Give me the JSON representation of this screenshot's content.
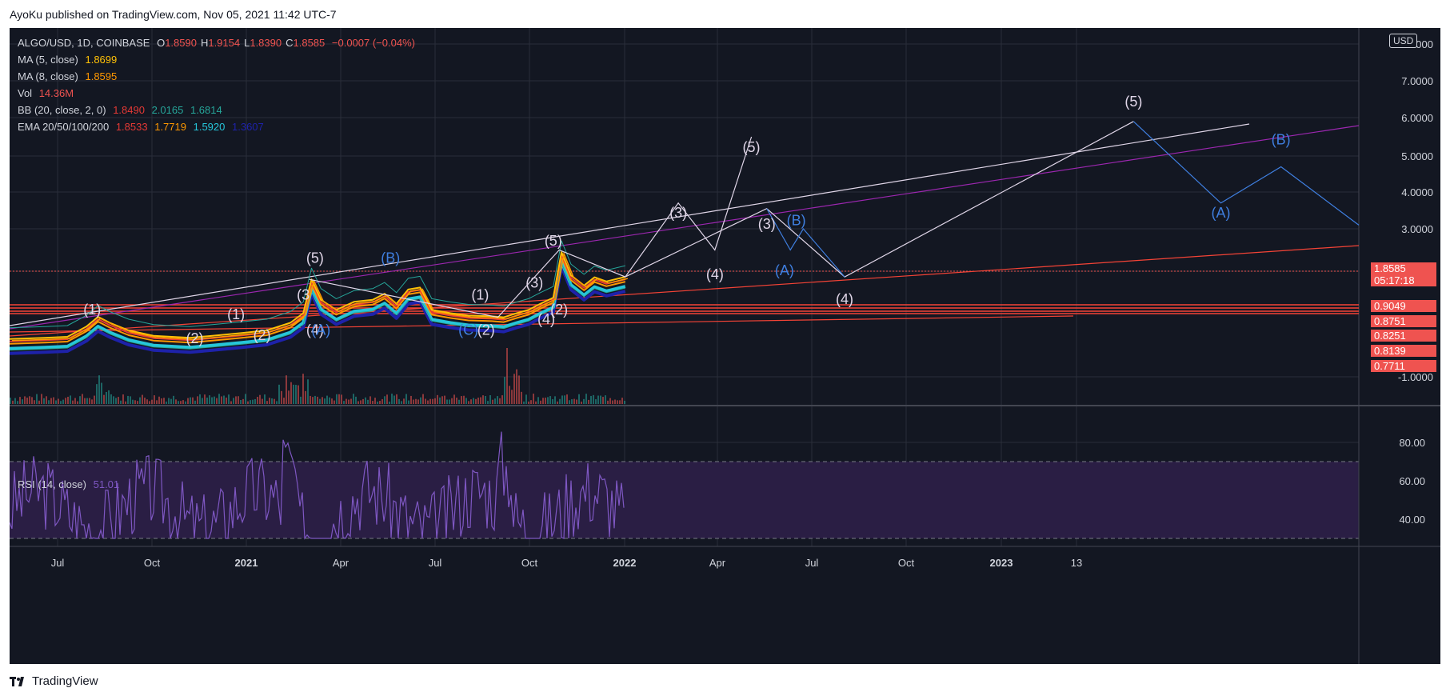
{
  "publish_line": "AyoKu published on TradingView.com, Nov 05, 2021 11:42 UTC-7",
  "brand": "TradingView",
  "currency_badge": "USD",
  "legend": {
    "symbol": "ALGO/USD, 1D, COINBASE",
    "ohlc": [
      {
        "k": "O",
        "v": "1.8590"
      },
      {
        "k": "H",
        "v": "1.9154"
      },
      {
        "k": "L",
        "v": "1.8390"
      },
      {
        "k": "C",
        "v": "1.8585"
      }
    ],
    "change": "−0.0007 (−0.04%)",
    "ma5_label": "MA (5, close)",
    "ma5_value": "1.8699",
    "ma8_label": "MA (8, close)",
    "ma8_value": "1.8595",
    "vol_label": "Vol",
    "vol_value": "14.36M",
    "bb_label": "BB (20, close, 2, 0)",
    "bb_values": [
      "1.8490",
      "2.0165",
      "1.6814"
    ],
    "ema_label": "EMA 20/50/100/200",
    "ema_values": [
      "1.8533",
      "1.7719",
      "1.5920",
      "1.3607"
    ],
    "rsi_label": "RSI (14, close)",
    "rsi_value": "51.01"
  },
  "colors": {
    "background": "#131722",
    "grid": "#2a2e39",
    "text": "#d1d4dc",
    "down": "#ef5350",
    "up": "#26a69a",
    "price_line": "#f7a21b",
    "ma5": "#ffc107",
    "ma8": "#ff9800",
    "ema20": "#e53935",
    "ema50": "#ff9800",
    "ema100": "#26c6da",
    "ema200": "#1e22aa",
    "bb": "#26a69a",
    "wave_white": "#e0d6e8",
    "wave_blue": "#3f7fe0",
    "trend_purple": "#9c27b0",
    "trend_red": "#f44336",
    "rsi_line": "#7e57c2",
    "rsi_band": "#2a1e44",
    "price_tag": "#ef5350"
  },
  "chart_data": {
    "type": "line",
    "symbol": "ALGO/USD",
    "timeframe": "1D",
    "exchange": "COINBASE",
    "x_ticks": [
      "Jul",
      "Oct",
      "2021",
      "Apr",
      "Jul",
      "Oct",
      "2022",
      "Apr",
      "Jul",
      "Oct",
      "2023",
      "13"
    ],
    "y_ticks": [
      "8.0000",
      "7.0000",
      "6.0000",
      "5.0000",
      "4.0000",
      "3.0000",
      "2.0000",
      "-1.0000"
    ],
    "rsi_ticks": [
      "80.00",
      "60.00",
      "40.00"
    ],
    "price_tags": [
      {
        "value": "1.8585",
        "countdown": "05:17:18"
      },
      {
        "value": "0.9049"
      },
      {
        "value": "0.8751"
      },
      {
        "value": "0.8251"
      },
      {
        "value": "0.8139"
      },
      {
        "value": "0.7711"
      }
    ],
    "price_series": [
      [
        "2020-06-01",
        0.22
      ],
      [
        "2020-07-01",
        0.24
      ],
      [
        "2020-07-20",
        0.26
      ],
      [
        "2020-08-05",
        0.45
      ],
      [
        "2020-08-15",
        0.8
      ],
      [
        "2020-08-25",
        0.55
      ],
      [
        "2020-09-10",
        0.38
      ],
      [
        "2020-10-01",
        0.28
      ],
      [
        "2020-11-01",
        0.24
      ],
      [
        "2020-11-20",
        0.28
      ],
      [
        "2020-12-15",
        0.33
      ],
      [
        "2021-01-05",
        0.38
      ],
      [
        "2021-01-25",
        0.55
      ],
      [
        "2021-02-05",
        0.95
      ],
      [
        "2021-02-12",
        1.8
      ],
      [
        "2021-02-20",
        1.3
      ],
      [
        "2021-03-05",
        1.05
      ],
      [
        "2021-03-20",
        1.25
      ],
      [
        "2021-04-05",
        1.3
      ],
      [
        "2021-04-15",
        1.45
      ],
      [
        "2021-04-25",
        1.2
      ],
      [
        "2021-05-05",
        1.55
      ],
      [
        "2021-05-15",
        1.6
      ],
      [
        "2021-05-25",
        1.05
      ],
      [
        "2021-06-10",
        0.95
      ],
      [
        "2021-06-25",
        0.85
      ],
      [
        "2021-07-15",
        0.82
      ],
      [
        "2021-07-25",
        0.78
      ],
      [
        "2021-08-05",
        0.95
      ],
      [
        "2021-08-15",
        1.05
      ],
      [
        "2021-08-25",
        1.2
      ],
      [
        "2021-09-05",
        1.35
      ],
      [
        "2021-09-12",
        2.45
      ],
      [
        "2021-09-20",
        1.9
      ],
      [
        "2021-10-01",
        1.65
      ],
      [
        "2021-10-10",
        1.85
      ],
      [
        "2021-10-20",
        1.75
      ],
      [
        "2021-11-05",
        1.86
      ]
    ],
    "waves_white": [
      {
        "label": "(1)",
        "x": "2020-08-10",
        "y": 0.9
      },
      {
        "label": "(2)",
        "x": "2020-11-05",
        "y": 0.1
      },
      {
        "label": "(1)",
        "x": "2020-12-10",
        "y": 0.7
      },
      {
        "label": "(2)",
        "x": "2021-01-01",
        "y": 0.2
      },
      {
        "label": "(3",
        "x": "2021-02-05",
        "y": 1.3
      },
      {
        "label": "(4)",
        "x": "2021-02-15",
        "y": 0.3
      },
      {
        "label": "(5)",
        "x": "2021-02-15",
        "y": 2.2
      },
      {
        "label": "(1)",
        "x": "2021-07-05",
        "y": 1.3
      },
      {
        "label": "(2)",
        "x": "2021-07-10",
        "y": 0.3
      },
      {
        "label": "(3)",
        "x": "2021-08-20",
        "y": 1.6
      },
      {
        "label": "(4)",
        "x": "2021-08-30",
        "y": 0.5
      },
      {
        "label": "(5)",
        "x": "2021-09-05",
        "y": 2.6
      },
      {
        "label": "(2)",
        "x": "2021-09-10",
        "y": 0.9
      },
      {
        "label": "(3)",
        "x": "2021-12-20",
        "y": 3.3
      },
      {
        "label": "(4)",
        "x": "2022-01-20",
        "y": 1.8
      },
      {
        "label": "(5)",
        "x": "2022-02-20",
        "y": 5.1
      },
      {
        "label": "(3)",
        "x": "2022-03-05",
        "y": 3.0
      },
      {
        "label": "(4)",
        "x": "2022-05-10",
        "y": 1.2
      },
      {
        "label": "(5)",
        "x": "2023-01-10",
        "y": 6.3
      }
    ],
    "waves_blue": [
      {
        "label": "(A)",
        "x": "2021-02-20",
        "y": 0.3
      },
      {
        "label": "(B)",
        "x": "2021-04-20",
        "y": 2.2
      },
      {
        "label": "(C)",
        "x": "2021-06-25",
        "y": 0.3
      },
      {
        "label": "(A)",
        "x": "2022-03-20",
        "y": 1.9
      },
      {
        "label": "(B)",
        "x": "2022-03-30",
        "y": 3.1
      },
      {
        "label": "(A)",
        "x": "2023-03-25",
        "y": 3.3
      },
      {
        "label": "(B)",
        "x": "2023-05-15",
        "y": 5.3
      }
    ]
  }
}
